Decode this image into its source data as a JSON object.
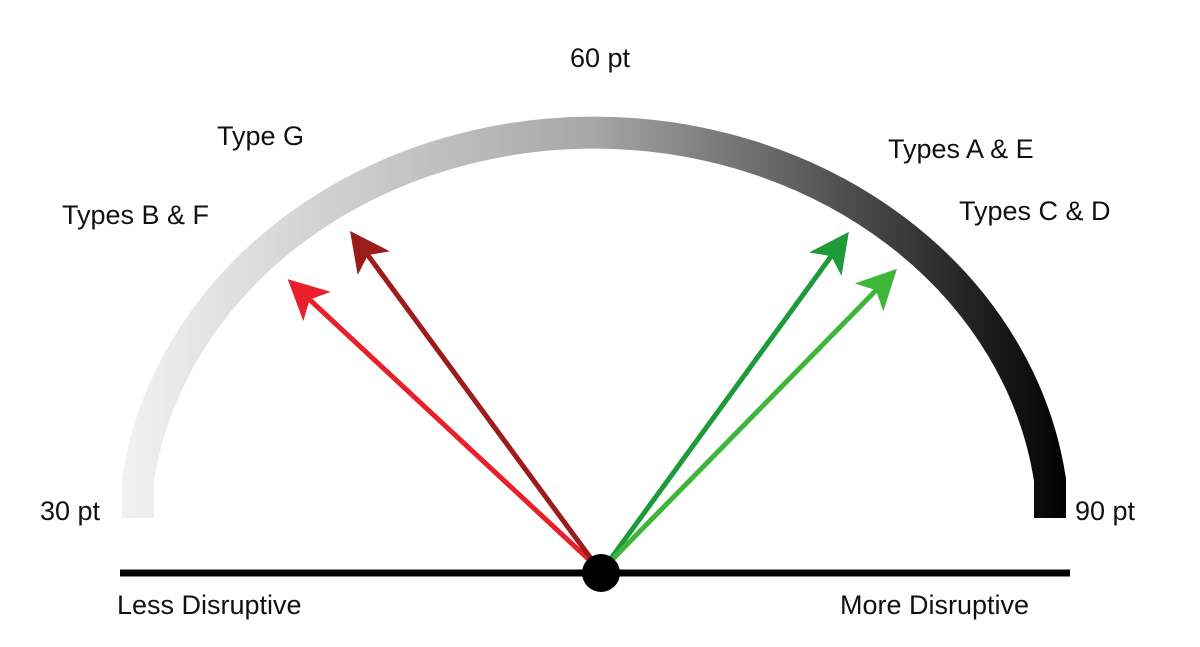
{
  "scale": {
    "min_label": "30 pt",
    "mid_label": "60 pt",
    "max_label": "90 pt",
    "arc_gradient": [
      "#f2f2f2",
      "#a6a6a6",
      "#000000"
    ]
  },
  "axis": {
    "left_label": "Less Disruptive",
    "right_label": "More Disruptive",
    "color": "#000000"
  },
  "arrows": [
    {
      "label": "Types B & F",
      "color": "#e8202a"
    },
    {
      "label": "Type G",
      "color": "#9e1b1b"
    },
    {
      "label": "Types A & E",
      "color": "#1e9a3a"
    },
    {
      "label": "Types C & D",
      "color": "#3db63a"
    }
  ]
}
